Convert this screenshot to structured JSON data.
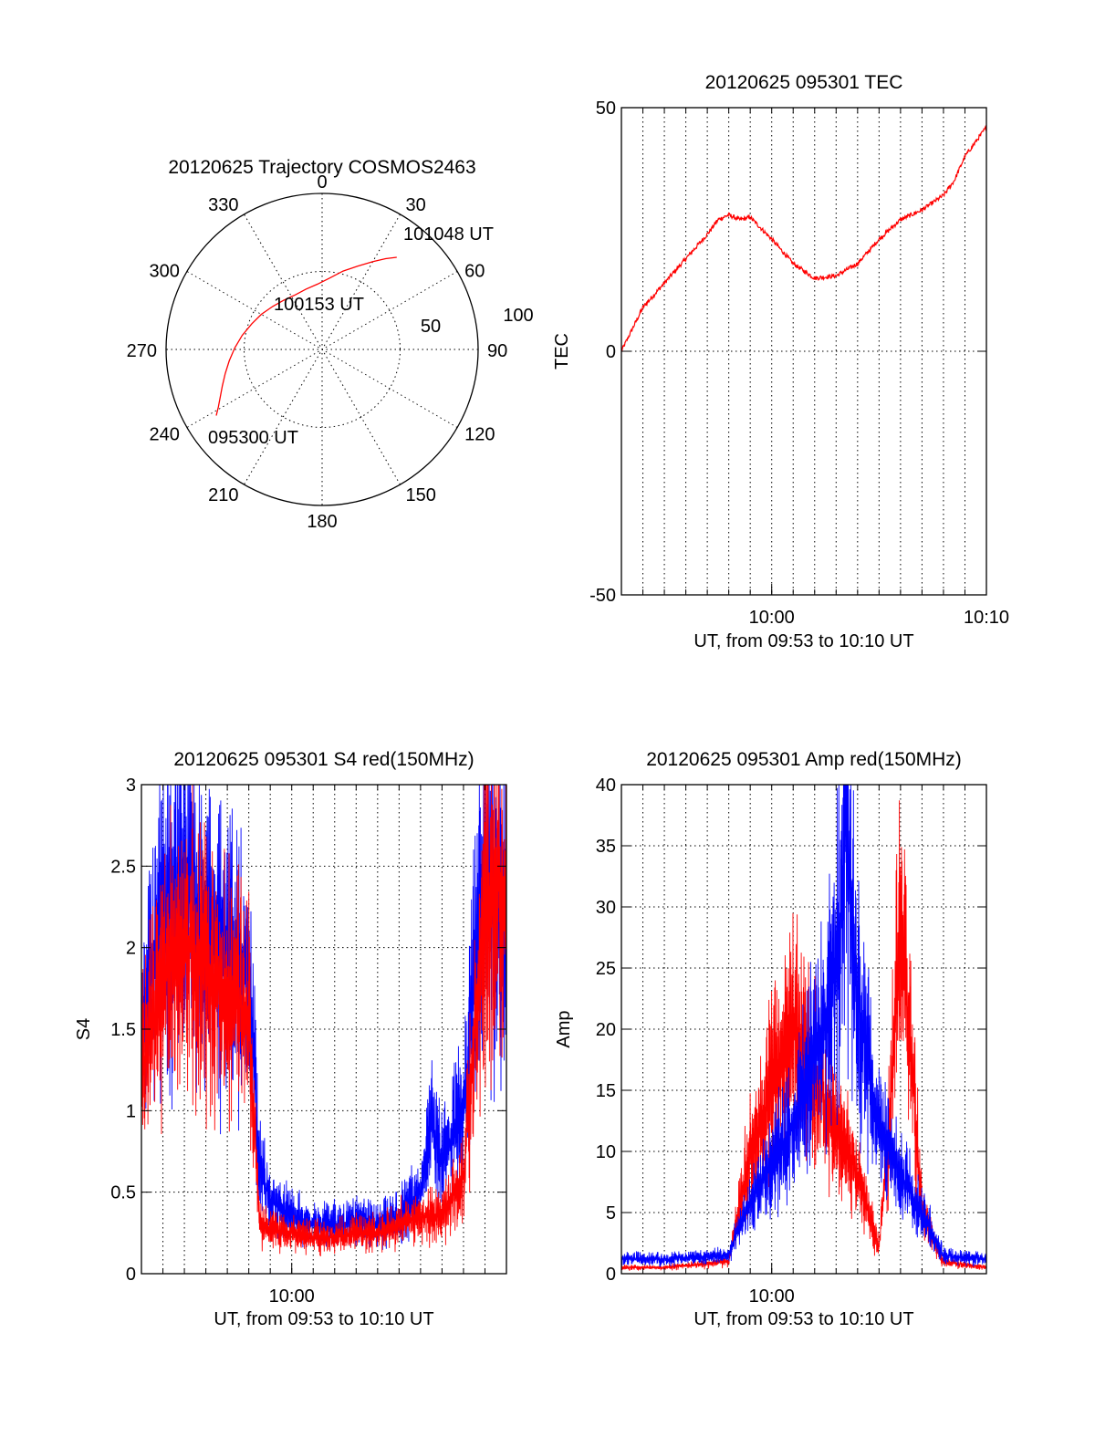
{
  "chart_data": [
    {
      "id": "trajectory",
      "type": "polar",
      "title": "20120625 Trajectory COSMOS2463",
      "radial_max": 100,
      "radial_rings": [
        50,
        100
      ],
      "radial_tick_labels": [
        "50",
        "100"
      ],
      "azimuth_ticks": [
        0,
        30,
        60,
        90,
        120,
        150,
        180,
        210,
        240,
        270,
        300,
        330
      ],
      "azimuth_tick_labels": [
        "0",
        "30",
        "60",
        "90",
        "120",
        "150",
        "180",
        "210",
        "240",
        "270",
        "300",
        "330"
      ],
      "trajectory": {
        "color": "#ff0000",
        "points": [
          {
            "az": 238,
            "r": 80
          },
          {
            "az": 241,
            "r": 76
          },
          {
            "az": 245,
            "r": 72
          },
          {
            "az": 250,
            "r": 68
          },
          {
            "az": 256,
            "r": 64
          },
          {
            "az": 263,
            "r": 60
          },
          {
            "az": 271,
            "r": 56
          },
          {
            "az": 280,
            "r": 52
          },
          {
            "az": 290,
            "r": 48
          },
          {
            "az": 300,
            "r": 45
          },
          {
            "az": 311,
            "r": 42
          },
          {
            "az": 322,
            "r": 40
          },
          {
            "az": 334,
            "r": 39
          },
          {
            "az": 345,
            "r": 40
          },
          {
            "az": 356,
            "r": 42
          },
          {
            "az": 6,
            "r": 46
          },
          {
            "az": 15,
            "r": 52
          },
          {
            "az": 23,
            "r": 58
          },
          {
            "az": 30,
            "r": 65
          },
          {
            "az": 35,
            "r": 71
          },
          {
            "az": 39,
            "r": 76
          }
        ]
      },
      "annotations": [
        {
          "text": "101048 UT",
          "az": 39,
          "r": 76
        },
        {
          "text": "100153 UT",
          "az": 335,
          "r": 32
        },
        {
          "text": "095300 UT",
          "az": 238,
          "r": 80
        }
      ]
    },
    {
      "id": "tec",
      "type": "line",
      "title": "20120625 095301 TEC",
      "xlabel": "UT, from 09:53 to 10:10 UT",
      "ylabel": "TEC",
      "xlim": [
        "09:53",
        "10:10"
      ],
      "ylim": [
        -50,
        50
      ],
      "xtick_labels": [
        "10:00",
        "10:10"
      ],
      "ytick_labels": [
        "-50",
        "0",
        "50"
      ],
      "series": [
        {
          "color": "#ff0000",
          "x": [
            "09:53",
            "09:54",
            "09:55",
            "09:56",
            "09:57",
            "09:57:30",
            "09:58",
            "09:58:30",
            "09:59",
            "10:00",
            "10:01",
            "10:02",
            "10:03",
            "10:04",
            "10:05",
            "10:06",
            "10:07",
            "10:08",
            "10:08:30",
            "10:09",
            "10:10"
          ],
          "y": [
            0,
            9,
            14,
            19,
            24,
            27,
            28,
            27,
            27.5,
            23,
            18,
            15,
            15.5,
            18,
            23,
            27,
            29,
            32,
            35,
            40,
            46
          ]
        }
      ]
    },
    {
      "id": "s4",
      "type": "line",
      "title": "20120625 095301 S4 red(150MHz)",
      "xlabel": "UT, from 09:53 to 10:10 UT",
      "ylabel": "S4",
      "xlim": [
        "09:53",
        "10:10"
      ],
      "ylim": [
        0,
        3
      ],
      "xtick_labels": [
        "10:00"
      ],
      "ytick_labels": [
        "0",
        "0.5",
        "1",
        "1.5",
        "2",
        "2.5",
        "3"
      ],
      "series": [
        {
          "color": "#0000ff",
          "x": [
            "09:53",
            "09:54",
            "09:55",
            "09:56",
            "09:57",
            "09:58",
            "09:58:30",
            "09:59",
            "10:00",
            "10:01",
            "10:02",
            "10:03",
            "10:04",
            "10:05",
            "10:06",
            "10:06:30",
            "10:07",
            "10:08",
            "10:09",
            "10:10"
          ],
          "y": [
            1.5,
            2.2,
            2.4,
            2.1,
            2.0,
            1.8,
            0.65,
            0.45,
            0.35,
            0.3,
            0.3,
            0.32,
            0.3,
            0.35,
            0.5,
            0.9,
            0.7,
            1.0,
            2.5,
            2.2
          ]
        },
        {
          "color": "#ff0000",
          "x": [
            "09:53",
            "09:54",
            "09:55",
            "09:56",
            "09:57",
            "09:58",
            "09:58:30",
            "09:59",
            "10:00",
            "10:01",
            "10:02",
            "10:03",
            "10:04",
            "10:05",
            "10:06",
            "10:07",
            "10:08",
            "10:09",
            "10:10"
          ],
          "y": [
            1.2,
            1.8,
            2.0,
            1.9,
            1.7,
            1.6,
            0.3,
            0.28,
            0.25,
            0.22,
            0.22,
            0.25,
            0.25,
            0.3,
            0.35,
            0.35,
            0.6,
            2.3,
            2.4
          ]
        }
      ]
    },
    {
      "id": "amp",
      "type": "line",
      "title": "20120625 095301 Amp red(150MHz)",
      "xlabel": "UT, from 09:53 to 10:10 UT",
      "ylabel": "Amp",
      "xlim": [
        "09:53",
        "10:10"
      ],
      "ylim": [
        0,
        40
      ],
      "xtick_labels": [
        "10:00"
      ],
      "ytick_labels": [
        "0",
        "5",
        "10",
        "15",
        "20",
        "25",
        "30",
        "35",
        "40"
      ],
      "series": [
        {
          "color": "#ff0000",
          "x": [
            "09:53",
            "09:55",
            "09:58",
            "09:59",
            "10:00",
            "10:01",
            "10:02",
            "10:03",
            "10:04",
            "10:05",
            "10:05:30",
            "10:06",
            "10:07",
            "10:08",
            "10:10"
          ],
          "y": [
            0.5,
            0.5,
            1,
            10,
            15,
            20,
            16,
            12,
            8,
            2,
            12,
            30,
            5,
            1,
            0.5
          ]
        },
        {
          "color": "#0000ff",
          "x": [
            "09:53",
            "09:55",
            "09:58",
            "09:59",
            "10:00",
            "10:01",
            "10:02",
            "10:03",
            "10:03:30",
            "10:04",
            "10:05",
            "10:06",
            "10:07",
            "10:08",
            "10:10"
          ],
          "y": [
            1.2,
            1.2,
            1.5,
            6,
            9,
            12,
            18,
            25,
            37,
            22,
            12,
            8,
            5,
            1.5,
            1.2
          ]
        }
      ]
    }
  ]
}
